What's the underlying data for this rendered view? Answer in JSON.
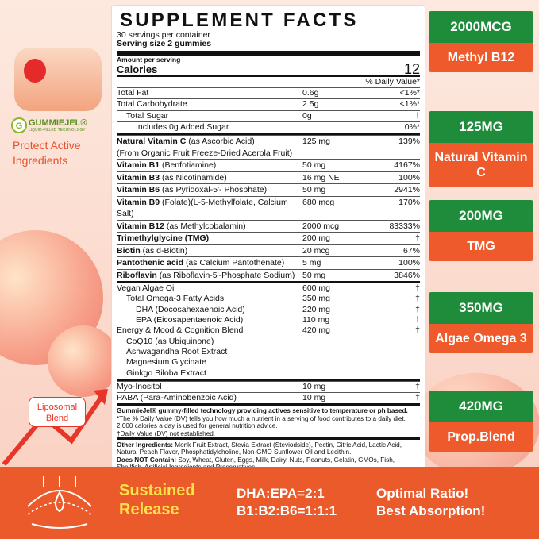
{
  "logo": {
    "brand": "GUMMIEJEL®",
    "tagline": "LIQUID-FILLED TECHNOLOGY"
  },
  "protect": "Protect Active Ingredients",
  "liposomal": "Liposomal Blend",
  "facts": {
    "title": "SUPPLEMENT FACTS",
    "servings": "30 servings per container",
    "serving_size": "Serving size 2 gummies",
    "amount_label": "Amount per serving",
    "calories_label": "Calories",
    "calories": "12",
    "dv_header": "% Daily Value*",
    "sections": [
      {
        "rows": [
          {
            "name": "Total Fat",
            "amount": "0.6g",
            "dv": "<1%*"
          },
          {
            "name": "Total Carbohydrate",
            "amount": "2.5g",
            "dv": "<1%*",
            "sub": [
              {
                "name": "Total Sugar",
                "amount": "0g",
                "dv": "†",
                "sub": [
                  {
                    "name": "Includes 0g Added Sugar",
                    "dv": "0%*"
                  }
                ]
              }
            ]
          }
        ]
      },
      {
        "rows": [
          {
            "name": "Natural Vitamin C",
            "detail": "(as Ascorbic Acid)",
            "amount": "125 mg",
            "dv": "139%",
            "note": "(From Organic Fruit Freeze-Dried Acerola Fruit)"
          },
          {
            "name": "Vitamin B1",
            "detail": "(Benfotiamine)",
            "amount": "50 mg",
            "dv": "4167%"
          },
          {
            "name": "Vitamin B3",
            "detail": "(as Nicotinamide)",
            "amount": "16 mg NE",
            "dv": "100%"
          },
          {
            "name": "Vitamin B6",
            "detail": "(as Pyridoxal-5'- Phosphate)",
            "amount": "50 mg",
            "dv": "2941%"
          },
          {
            "name": "Vitamin B9",
            "detail": "(Folate)(L-5-Methylfolate, Calcium Salt)",
            "amount": "680 mcg",
            "dv": "170%"
          },
          {
            "name": "Vitamin B12",
            "detail": "(as Methylcobalamin)",
            "amount": "2000 mcg",
            "dv": "83333%"
          },
          {
            "name": "Trimethylglycine (TMG)",
            "amount": "200 mg",
            "dv": "†"
          },
          {
            "name": "Biotin",
            "detail": "(as d-Biotin)",
            "amount": "20 mcg",
            "dv": "67%"
          },
          {
            "name": "Pantothenic acid",
            "detail": "(as Calcium Pantothenate)",
            "amount": "5 mg",
            "dv": "100%"
          },
          {
            "name": "Riboflavin",
            "detail": "(as Riboflavin-5'-Phosphate Sodium)",
            "amount": "50 mg",
            "dv": "3846%"
          }
        ]
      },
      {
        "rows": [
          {
            "name": "Vegan Algae Oil",
            "amount": "600 mg",
            "dv": "†",
            "sub": [
              {
                "name": "Total Omega-3 Fatty Acids",
                "amount": "350 mg",
                "dv": "†",
                "sub": [
                  {
                    "name": "DHA",
                    "detail": "(Docosahexaenoic Acid)",
                    "amount": "220 mg",
                    "dv": "†"
                  },
                  {
                    "name": "EPA",
                    "detail": "(Eicosapentaenoic Acid)",
                    "amount": "110 mg",
                    "dv": "†"
                  }
                ]
              }
            ]
          },
          {
            "name": "Energy & Mood & Cognition Blend",
            "amount": "420 mg",
            "dv": "†",
            "sub": [
              {
                "name": "CoQ10",
                "detail": "(as Ubiquinone)"
              },
              {
                "name": "Ashwagandha Root Extract"
              },
              {
                "name": "Magnesium Glycinate"
              },
              {
                "name": "Ginkgo Biloba Extract"
              }
            ]
          }
        ]
      },
      {
        "rows": [
          {
            "name": "Myo-Inositol",
            "amount": "10 mg",
            "dv": "†"
          },
          {
            "name": "PABA",
            "detail": "(Para-Aminobenzoic Acid)",
            "amount": "10 mg",
            "dv": "†"
          }
        ]
      }
    ],
    "footnotes": [
      "GummieJel® gummy-filled technology providing actives sensitive to temperature or ph based.",
      "*The % Daily Value (DV) tells you how much a nutrient in a serving of food contributes to a daily diet. 2,000 calories a day is used for general nutrition advice.",
      "†Daily Value (DV) not established."
    ],
    "other_label": "Other Ingredients:",
    "other_text": "Monk Fruit Extract, Stevia Extract (Steviodside), Pectin, Citric Acid, Lactic Acid, Natural Peach Flavor, Phosphatidylcholine, Non-GMO Sunflower Oil and Lecithin.",
    "contain_label": "Does NOT Contain:",
    "contain_text": "Soy, Wheat, Gluten, Eggs, Milk, Dairy, Nuts, Peanuts, Gelatin, GMOs, Fish, Shellfish, Artificial Ingredients and Preservatives."
  },
  "badges": [
    {
      "dose": "2000MCG",
      "name": "Methyl B12"
    },
    {
      "dose": "125MG",
      "name": "Natural Vitamin C"
    },
    {
      "dose": "200MG",
      "name": "TMG"
    },
    {
      "dose": "350MG",
      "name": "Algae Omega 3"
    },
    {
      "dose": "420MG",
      "name": "Prop.Blend"
    }
  ],
  "banner": {
    "release": "Sustained Release",
    "ratio1": "DHA:EPA=2:1",
    "ratio2": "B1:B2:B6=1:1:1",
    "claim1": "Optimal Ratio!",
    "claim2": "Best Absorption!"
  }
}
